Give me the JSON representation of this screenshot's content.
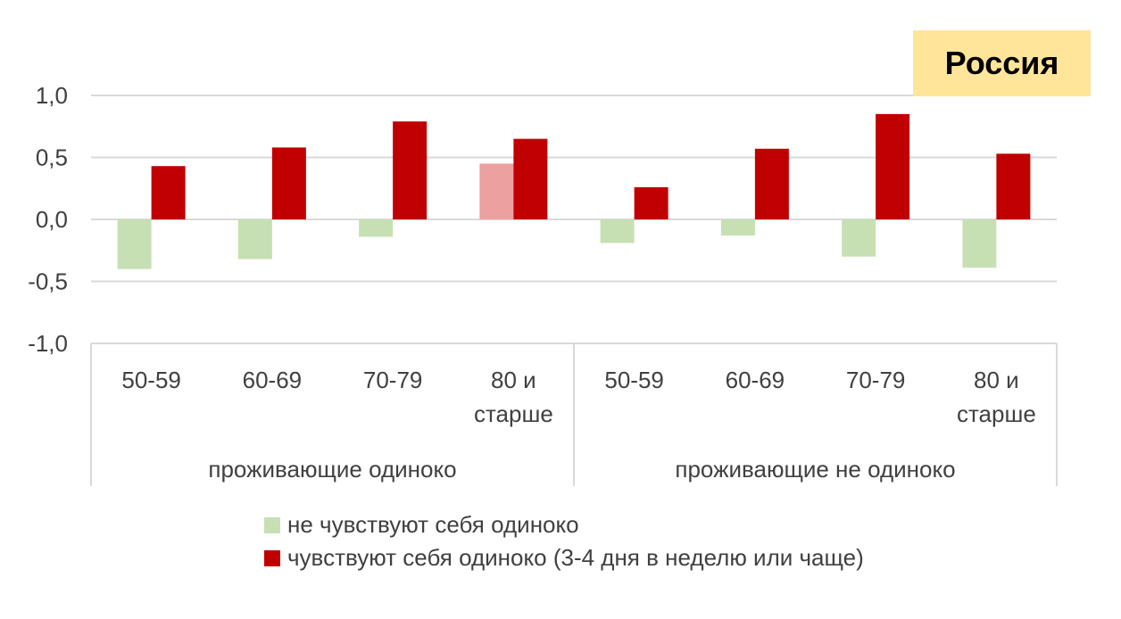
{
  "badge": {
    "text": "Россия",
    "color": "#ffe59a"
  },
  "chart_data": {
    "type": "bar",
    "title": "",
    "xlabel": "",
    "ylabel": "",
    "ylim": [
      -1.0,
      1.0
    ],
    "yticks": [
      1.0,
      0.5,
      0.0,
      -0.5,
      -1.0
    ],
    "ytick_labels": [
      "1,0",
      "0,5",
      "0,0",
      "-0,5",
      "-1,0"
    ],
    "grid": true,
    "legend_position": "bottom",
    "groups": [
      {
        "label": "проживающие одиноко",
        "categories": [
          [
            "50-59"
          ],
          [
            "60-69"
          ],
          [
            "70-79"
          ],
          [
            "80 и",
            "старше"
          ]
        ]
      },
      {
        "label": "проживающие не одиноко",
        "categories": [
          [
            "50-59"
          ],
          [
            "60-69"
          ],
          [
            "70-79"
          ],
          [
            "80 и",
            "старше"
          ]
        ]
      }
    ],
    "series": [
      {
        "name": "не чувствуют себя одиноко",
        "color": "#c6e0b4",
        "values": [
          -0.4,
          -0.32,
          -0.14,
          0.45,
          -0.19,
          -0.13,
          -0.3,
          -0.39
        ],
        "point_colors": [
          null,
          null,
          null,
          "#eda0a0",
          null,
          null,
          null,
          null
        ]
      },
      {
        "name": "чувствуют себя одиноко (3-4 дня в неделю или чаще)",
        "color": "#c00000",
        "values": [
          0.43,
          0.58,
          0.79,
          0.65,
          0.26,
          0.57,
          0.85,
          0.53
        ]
      }
    ]
  }
}
